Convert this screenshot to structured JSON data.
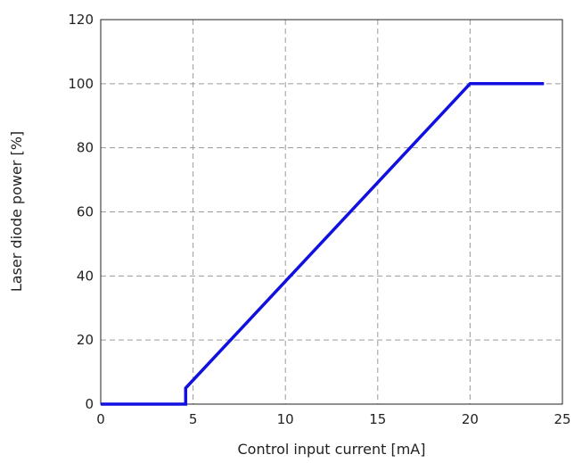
{
  "chart_data": {
    "type": "line",
    "xlabel": "Control input current [mA]",
    "ylabel": "Laser diode power [%]",
    "xlim": [
      0,
      25
    ],
    "ylim": [
      0,
      120
    ],
    "xticks": [
      "0",
      "5",
      "10",
      "15",
      "20",
      "25"
    ],
    "yticks": [
      "0",
      "20",
      "40",
      "60",
      "80",
      "100",
      "120"
    ],
    "grid": true,
    "series": [
      {
        "color": "#1010e0",
        "x": [
          0,
          4.6,
          4.6,
          20,
          24
        ],
        "y": [
          0,
          0,
          5,
          100,
          100
        ]
      }
    ]
  }
}
